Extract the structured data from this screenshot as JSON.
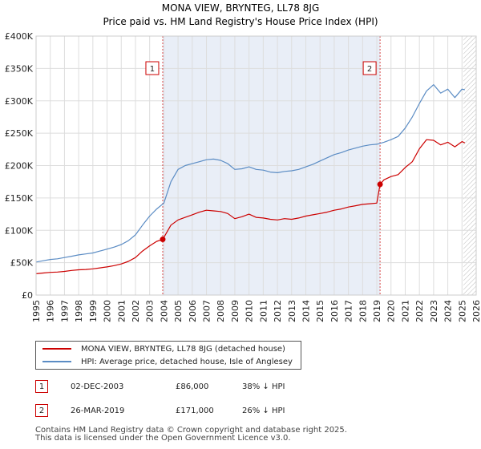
{
  "chart_data": {
    "type": "line",
    "title": "MONA VIEW, BRYNTEG, LL78 8JG",
    "subtitle": "Price paid vs. HM Land Registry's House Price Index (HPI)",
    "xlim": [
      1995,
      2026
    ],
    "ylim": [
      0,
      400000
    ],
    "x_ticks": [
      "1995",
      "1996",
      "1997",
      "1998",
      "1999",
      "2000",
      "2001",
      "2002",
      "2003",
      "2004",
      "2005",
      "2006",
      "2007",
      "2008",
      "2009",
      "2010",
      "2011",
      "2012",
      "2013",
      "2014",
      "2015",
      "2016",
      "2017",
      "2018",
      "2019",
      "2020",
      "2021",
      "2022",
      "2023",
      "2024",
      "2025",
      "2026"
    ],
    "y_ticks": [
      {
        "value": 0,
        "label": "£0"
      },
      {
        "value": 50000,
        "label": "£50K"
      },
      {
        "value": 100000,
        "label": "£100K"
      },
      {
        "value": 150000,
        "label": "£150K"
      },
      {
        "value": 200000,
        "label": "£200K"
      },
      {
        "value": 250000,
        "label": "£250K"
      },
      {
        "value": 300000,
        "label": "£300K"
      },
      {
        "value": 350000,
        "label": "£350K"
      },
      {
        "value": 400000,
        "label": "£400K"
      }
    ],
    "grid": true,
    "shaded_region": {
      "from": 2003.92,
      "to": 2019.23
    },
    "hatched_from": 2025.1,
    "series": [
      {
        "name": "MONA VIEW, BRYNTEG, LL78 8JG (detached house)",
        "color": "#cc0000",
        "x": [
          1995,
          1995.5,
          1996,
          1996.5,
          1997,
          1997.5,
          1998,
          1998.5,
          1999,
          1999.5,
          2000,
          2000.5,
          2001,
          2001.5,
          2002,
          2002.5,
          2003,
          2003.5,
          2003.92,
          2004.5,
          2005,
          2005.5,
          2006,
          2006.5,
          2007,
          2007.5,
          2008,
          2008.5,
          2009,
          2009.5,
          2010,
          2010.5,
          2011,
          2011.5,
          2012,
          2012.5,
          2013,
          2013.5,
          2014,
          2014.5,
          2015,
          2015.5,
          2016,
          2016.5,
          2017,
          2017.5,
          2018,
          2018.5,
          2019,
          2019.23,
          2019.5,
          2020,
          2020.5,
          2021,
          2021.5,
          2022,
          2022.5,
          2023,
          2023.5,
          2024,
          2024.5,
          2025,
          2025.2
        ],
        "values": [
          33000,
          34000,
          35000,
          35500,
          36500,
          38000,
          39000,
          39500,
          40500,
          42000,
          43500,
          45500,
          48000,
          52000,
          58000,
          68000,
          76000,
          83000,
          86000,
          108000,
          116000,
          120000,
          124000,
          128000,
          131000,
          130000,
          129000,
          126000,
          118000,
          121000,
          125000,
          120000,
          119000,
          117000,
          116000,
          118000,
          117000,
          119000,
          122000,
          124000,
          126000,
          128000,
          131000,
          133000,
          136000,
          138000,
          140000,
          141000,
          142000,
          171000,
          178000,
          183000,
          186000,
          197000,
          206000,
          226000,
          240000,
          239000,
          232000,
          236000,
          229000,
          237000,
          235000
        ]
      },
      {
        "name": "HPI: Average price, detached house, Isle of Anglesey",
        "color": "#5b8cc4",
        "x": [
          1995,
          1995.5,
          1996,
          1996.5,
          1997,
          1997.5,
          1998,
          1998.5,
          1999,
          1999.5,
          2000,
          2000.5,
          2001,
          2001.5,
          2002,
          2002.5,
          2003,
          2003.5,
          2004,
          2004.5,
          2005,
          2005.5,
          2006,
          2006.5,
          2007,
          2007.5,
          2008,
          2008.5,
          2009,
          2009.5,
          2010,
          2010.5,
          2011,
          2011.5,
          2012,
          2012.5,
          2013,
          2013.5,
          2014,
          2014.5,
          2015,
          2015.5,
          2016,
          2016.5,
          2017,
          2017.5,
          2018,
          2018.5,
          2019,
          2019.5,
          2020,
          2020.5,
          2021,
          2021.5,
          2022,
          2022.5,
          2023,
          2023.5,
          2024,
          2024.5,
          2025,
          2025.2
        ],
        "values": [
          51000,
          53000,
          55000,
          56000,
          58000,
          60000,
          62000,
          63500,
          65000,
          68000,
          71000,
          74000,
          78000,
          84000,
          93000,
          108000,
          122000,
          133000,
          142000,
          175000,
          194000,
          200000,
          203000,
          206000,
          209000,
          210000,
          208000,
          203000,
          194000,
          195000,
          198000,
          194000,
          193000,
          190000,
          189000,
          191000,
          192000,
          194000,
          198000,
          202000,
          207000,
          212000,
          217000,
          220000,
          224000,
          227000,
          230000,
          232000,
          233000,
          236000,
          240000,
          245000,
          258000,
          275000,
          296000,
          315000,
          325000,
          312000,
          318000,
          305000,
          318000,
          317000
        ]
      }
    ],
    "sales": [
      {
        "label": "1",
        "date": "02-DEC-2003",
        "x": 2003.92,
        "price": 86000,
        "price_text": "£86,000",
        "hpi_text": "38% ↓ HPI"
      },
      {
        "label": "2",
        "date": "26-MAR-2019",
        "x": 2019.23,
        "price": 171000,
        "price_text": "£171,000",
        "hpi_text": "26% ↓ HPI"
      }
    ]
  },
  "footer": {
    "line1": "Contains HM Land Registry data © Crown copyright and database right 2025.",
    "line2": "This data is licensed under the Open Government Licence v3.0."
  }
}
